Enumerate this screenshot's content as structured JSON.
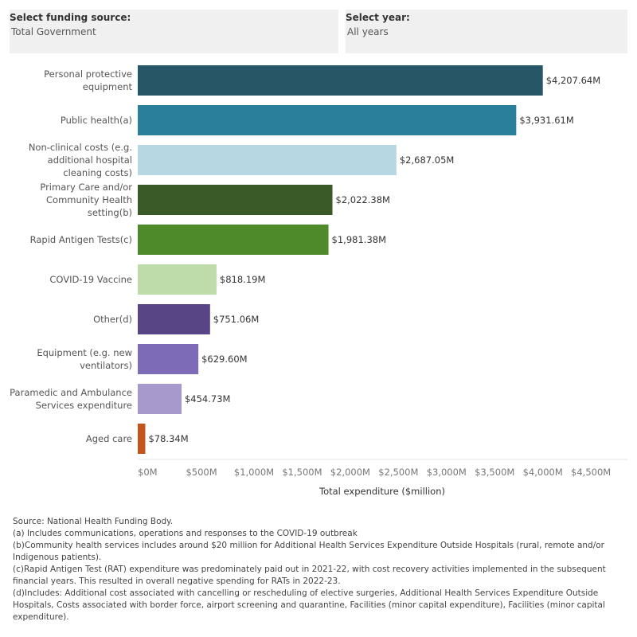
{
  "filters": {
    "funding": {
      "label": "Select funding source:",
      "value": "Total Government"
    },
    "year": {
      "label": "Select year:",
      "value": "All years"
    }
  },
  "chart_data": {
    "type": "bar",
    "orientation": "horizontal",
    "categories": [
      [
        "Personal protective",
        "equipment"
      ],
      [
        "Public health(a)"
      ],
      [
        "Non-clinical costs (e.g.",
        "additional hospital",
        "cleaning costs)"
      ],
      [
        "Primary Care and/or",
        "Community Health",
        "setting(b)"
      ],
      [
        "Rapid Antigen Tests(c)"
      ],
      [
        "COVID-19 Vaccine"
      ],
      [
        "Other(d)"
      ],
      [
        "Equipment (e.g. new",
        "ventilators)"
      ],
      [
        "Paramedic and Ambulance",
        "Services expenditure"
      ],
      [
        "Aged care"
      ]
    ],
    "values": [
      4207.64,
      3931.61,
      2687.05,
      2022.38,
      1981.38,
      818.19,
      751.06,
      629.6,
      454.73,
      78.34
    ],
    "value_labels": [
      "$4,207.64M",
      "$3,931.61M",
      "$2,687.05M",
      "$2,022.38M",
      "$1,981.38M",
      "$818.19M",
      "$751.06M",
      "$629.60M",
      "$454.73M",
      "$78.34M"
    ],
    "colors": [
      "#275767",
      "#2a7f9b",
      "#b7d7e2",
      "#3a5a27",
      "#4f8a2a",
      "#bedcaa",
      "#574586",
      "#7e6bb8",
      "#a799cb",
      "#c4541a"
    ],
    "xlim": [
      0,
      4800
    ],
    "x_ticks": [
      0,
      500,
      1000,
      1500,
      2000,
      2500,
      3000,
      3500,
      4000,
      4500
    ],
    "x_tick_labels": [
      "$0M",
      "$500M",
      "$1,000M",
      "$1,500M",
      "$2,000M",
      "$2,500M",
      "$3,000M",
      "$3,500M",
      "$4,000M",
      "$4,500M"
    ],
    "xlabel": "Total expenditure ($million)",
    "ylabel": "",
    "grid": false
  },
  "notes": [
    "Source: National Health Funding Body.",
    "(a) Includes communications, operations and responses to the COVID-19 outbreak",
    "(b)Community health services includes around $20 million for Additional Health Services Expenditure Outside Hospitals (rural, remote and/or Indigenous patients).",
    "(c)Rapid Antigen Test (RAT) expenditure was predominately paid out in 2021-22, with cost recovery activities implemented in the subsequent financial years. This resulted in overall negative spending for RATs in 2022-23.",
    "(d)Includes: Additional cost associated with cancelling or rescheduling of elective surgeries, Additional Health Services Expenditure Outside Hospitals, Costs associated with border force, airport screening and quarantine, Facilities (minor capital expenditure), Facilities (minor capital expenditure)."
  ]
}
